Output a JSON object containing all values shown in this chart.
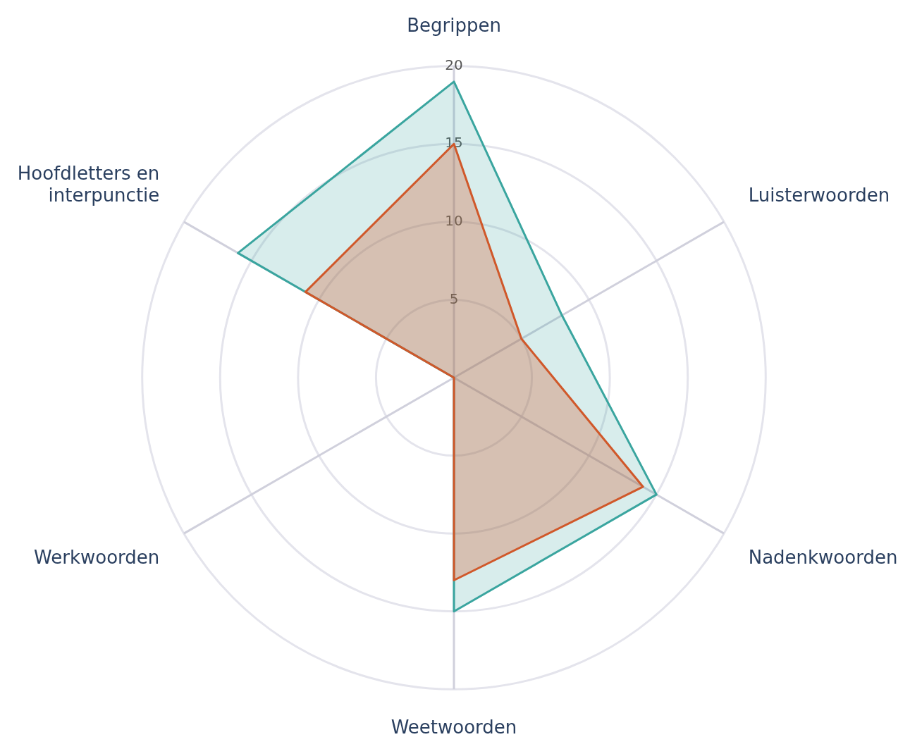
{
  "chart_data": {
    "type": "radar",
    "categories": [
      "Begrippen",
      "Luisterwoorden",
      "Nadenkwoorden",
      "Weetwoorden",
      "Werkwoorden",
      "Hoofdletters en interpunctie"
    ],
    "series": [
      {
        "color": "#3aa59f",
        "values": [
          19,
          8,
          15,
          15,
          0,
          16
        ]
      },
      {
        "color": "#d0582a",
        "values": [
          15,
          5,
          14,
          13,
          0,
          11
        ]
      }
    ],
    "ylim": [
      0,
      20
    ],
    "yticks": [
      5,
      10,
      15,
      20
    ],
    "grid": true,
    "legend": false,
    "marker": "none",
    "line_style": "solid"
  }
}
